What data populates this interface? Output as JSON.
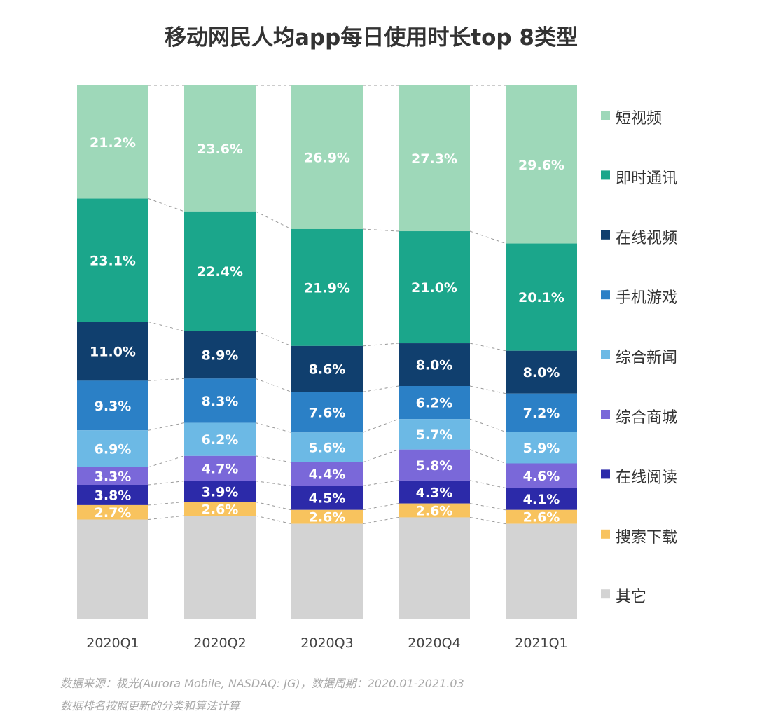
{
  "chart_data": {
    "type": "bar",
    "stacked": true,
    "title": "移动网民人均app每日使用时长top 8类型",
    "categories": [
      "2020Q1",
      "2020Q2",
      "2020Q3",
      "2020Q4",
      "2021Q1"
    ],
    "ylim": [
      0,
      100
    ],
    "unit": "%",
    "grid": false,
    "legend_position": "right",
    "series": [
      {
        "name": "短视频",
        "color": "#9ed8b9",
        "values": [
          21.2,
          23.6,
          26.9,
          27.3,
          29.6
        ],
        "labels": [
          "21.2%",
          "23.6%",
          "26.9%",
          "27.3%",
          "29.6%"
        ]
      },
      {
        "name": "即时通讯",
        "color": "#1ba68b",
        "values": [
          23.1,
          22.4,
          21.9,
          21.0,
          20.1
        ],
        "labels": [
          "23.1%",
          "22.4%",
          "21.9%",
          "21.0%",
          "20.1%"
        ]
      },
      {
        "name": "在线视频",
        "color": "#103f6e",
        "values": [
          11.0,
          8.9,
          8.6,
          8.0,
          8.0
        ],
        "labels": [
          "11.0%",
          "8.9%",
          "8.6%",
          "8.0%",
          "8.0%"
        ]
      },
      {
        "name": "手机游戏",
        "color": "#2b80c6",
        "values": [
          9.3,
          8.3,
          7.6,
          6.2,
          7.2
        ],
        "labels": [
          "9.3%",
          "8.3%",
          "7.6%",
          "6.2%",
          "7.2%"
        ]
      },
      {
        "name": "综合新闻",
        "color": "#6cb9e5",
        "values": [
          6.9,
          6.2,
          5.6,
          5.7,
          5.9
        ],
        "labels": [
          "6.9%",
          "6.2%",
          "5.6%",
          "5.7%",
          "5.9%"
        ]
      },
      {
        "name": "综合商城",
        "color": "#7a68d9",
        "values": [
          3.3,
          4.7,
          4.4,
          5.8,
          4.6
        ],
        "labels": [
          "3.3%",
          "4.7%",
          "4.4%",
          "5.8%",
          "4.6%"
        ]
      },
      {
        "name": "在线阅读",
        "color": "#2c2aa9",
        "values": [
          3.8,
          3.9,
          4.5,
          4.3,
          4.1
        ],
        "labels": [
          "3.8%",
          "3.9%",
          "4.5%",
          "4.3%",
          "4.1%"
        ]
      },
      {
        "name": "搜索下载",
        "color": "#f8c35e",
        "values": [
          2.7,
          2.6,
          2.6,
          2.6,
          2.6
        ],
        "labels": [
          "2.7%",
          "2.6%",
          "2.6%",
          "2.6%",
          "2.6%"
        ]
      },
      {
        "name": "其它",
        "color": "#d3d3d3",
        "values": [
          18.7,
          19.4,
          17.9,
          19.1,
          17.9
        ]
      }
    ]
  },
  "footer": {
    "source": "数据来源：极光(Aurora Mobile, NASDAQ: JG)，数据周期：2020.01-2021.03",
    "note": "数据排名按照更新的分类和算法计算"
  }
}
